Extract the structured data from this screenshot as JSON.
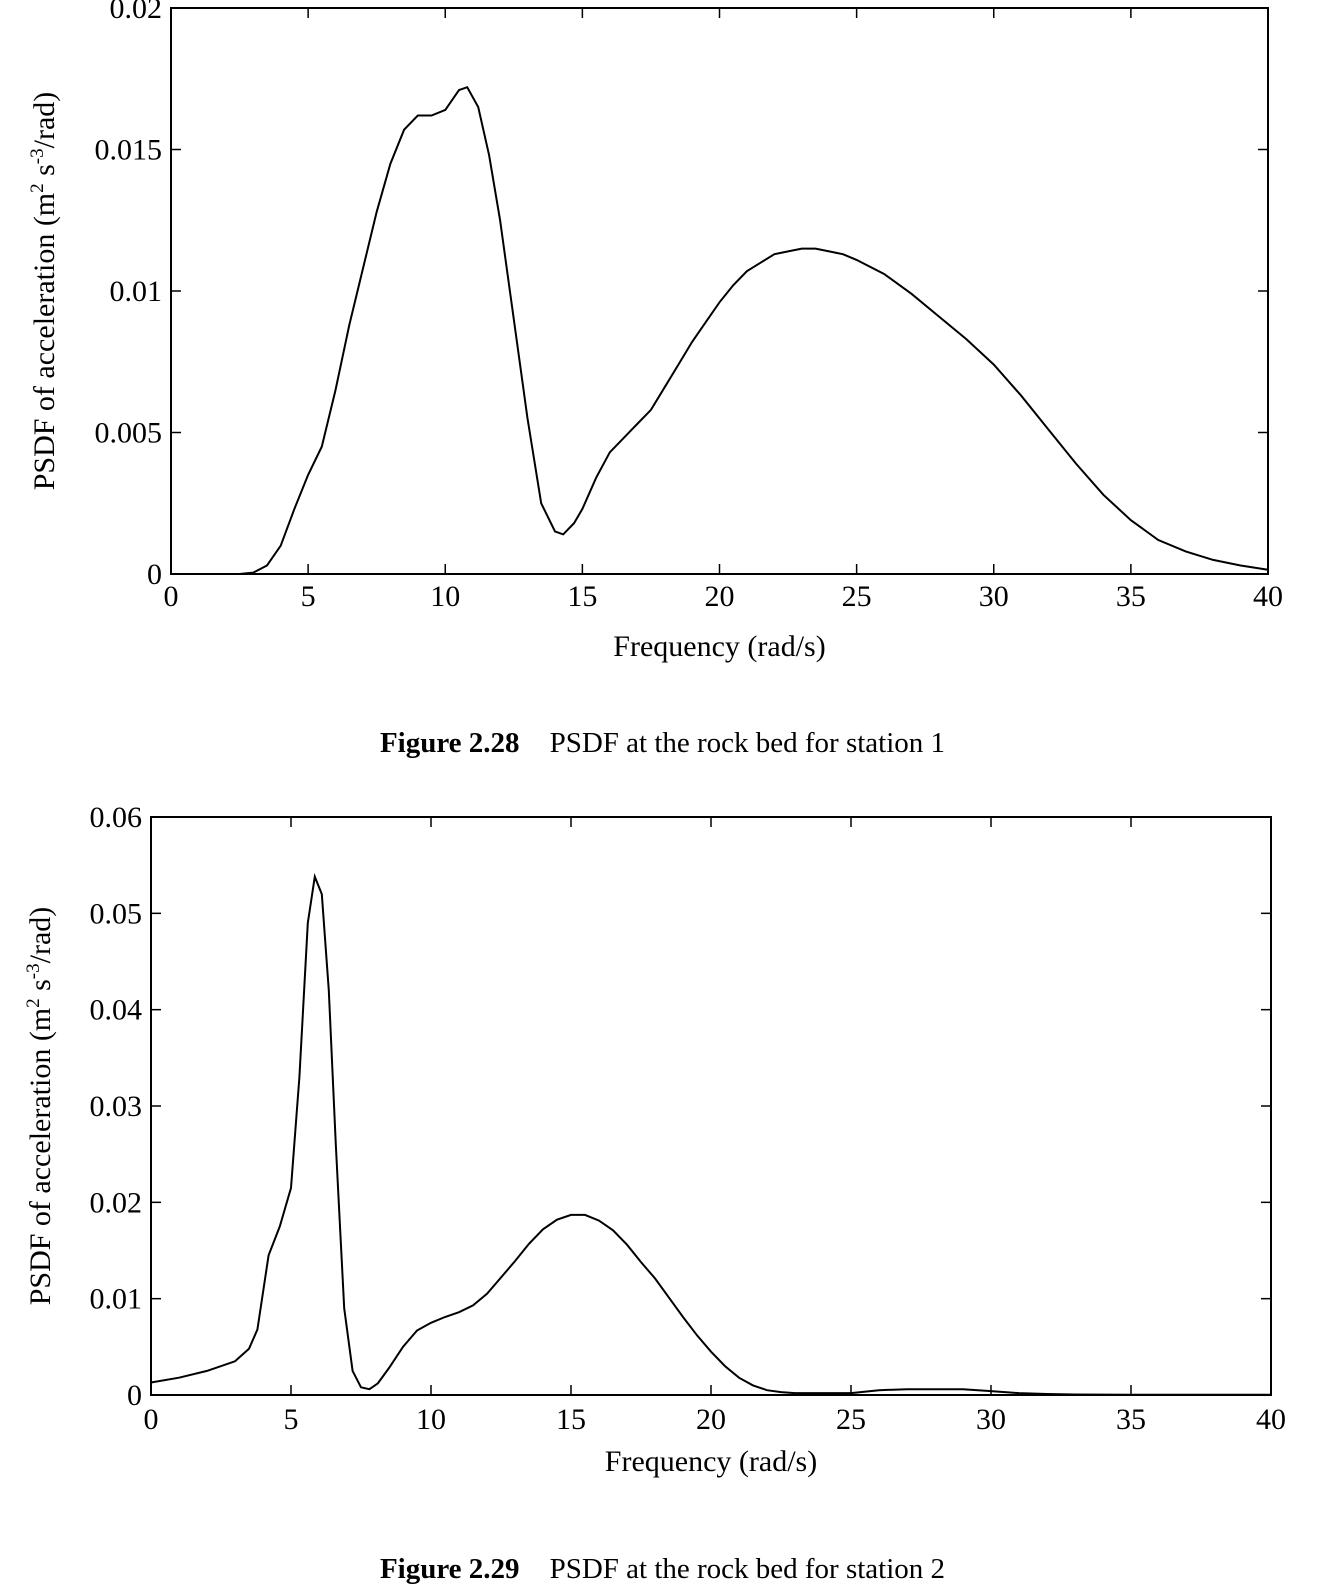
{
  "figures": [
    {
      "caption": {
        "number": "Figure 2.28",
        "text": "PSDF at the rock bed for station 1"
      }
    },
    {
      "caption": {
        "number": "Figure 2.29",
        "text": "PSDF at the rock bed for station 2"
      }
    }
  ],
  "chart_data": [
    {
      "type": "line",
      "title": "",
      "xlabel": "Frequency (rad/s)",
      "ylabel": "PSDF of acceleration (m² s⁻³/rad)",
      "ylabel_parts": [
        "PSDF of acceleration (m",
        "2",
        " s",
        "-3",
        "/rad)"
      ],
      "xlim": [
        0,
        40
      ],
      "ylim": [
        0,
        0.02
      ],
      "xticks": [
        0,
        5,
        10,
        15,
        20,
        25,
        30,
        35,
        40
      ],
      "xtick_labels": [
        "0",
        "5",
        "10",
        "15",
        "20",
        "25",
        "30",
        "35",
        "40"
      ],
      "yticks": [
        0,
        0.005,
        0.01,
        0.015,
        0.02
      ],
      "ytick_labels": [
        "0",
        "0.005",
        "0.01",
        "0.015",
        "0.02"
      ],
      "series": [
        {
          "name": "station 1",
          "x": [
            0,
            2.5,
            3.0,
            3.5,
            4.0,
            4.5,
            5.0,
            5.5,
            6.0,
            6.5,
            7.0,
            7.5,
            8.0,
            8.5,
            9.0,
            9.5,
            10.0,
            10.5,
            10.8,
            11.2,
            11.6,
            12.0,
            12.5,
            13.0,
            13.5,
            14.0,
            14.3,
            14.7,
            15.0,
            15.5,
            16.0,
            16.5,
            17.0,
            17.5,
            18.0,
            18.5,
            19.0,
            19.5,
            20.0,
            20.5,
            21.0,
            21.5,
            22.0,
            22.5,
            23.0,
            23.5,
            24.0,
            24.5,
            25.0,
            26.0,
            27.0,
            28.0,
            29.0,
            30.0,
            31.0,
            32.0,
            33.0,
            34.0,
            35.0,
            36.0,
            37.0,
            38.0,
            39.0,
            40.0
          ],
          "y": [
            0,
            0,
            5e-05,
            0.0003,
            0.001,
            0.0023,
            0.0035,
            0.0045,
            0.0065,
            0.0088,
            0.0108,
            0.0128,
            0.0145,
            0.0157,
            0.0162,
            0.0162,
            0.0164,
            0.0171,
            0.0172,
            0.0165,
            0.0148,
            0.0125,
            0.009,
            0.0055,
            0.0025,
            0.0015,
            0.0014,
            0.0018,
            0.0023,
            0.0034,
            0.0043,
            0.0048,
            0.0053,
            0.0058,
            0.0066,
            0.0074,
            0.0082,
            0.0089,
            0.0096,
            0.0102,
            0.0107,
            0.011,
            0.0113,
            0.0114,
            0.0115,
            0.0115,
            0.0114,
            0.0113,
            0.0111,
            0.0106,
            0.0099,
            0.0091,
            0.0083,
            0.0074,
            0.0063,
            0.0051,
            0.0039,
            0.0028,
            0.0019,
            0.0012,
            0.0008,
            0.0005,
            0.0003,
            0.00015
          ]
        }
      ]
    },
    {
      "type": "line",
      "title": "",
      "xlabel": "Frequency (rad/s)",
      "ylabel": "PSDF of acceleration (m² s⁻³/rad)",
      "ylabel_parts": [
        "PSDF of acceleration (m",
        "2",
        " s",
        "-3",
        "/rad)"
      ],
      "xlim": [
        0,
        40
      ],
      "ylim": [
        0,
        0.06
      ],
      "xticks": [
        0,
        5,
        10,
        15,
        20,
        25,
        30,
        35,
        40
      ],
      "xtick_labels": [
        "0",
        "5",
        "10",
        "15",
        "20",
        "25",
        "30",
        "35",
        "40"
      ],
      "yticks": [
        0,
        0.01,
        0.02,
        0.03,
        0.04,
        0.05,
        0.06
      ],
      "ytick_labels": [
        "0",
        "0.01",
        "0.02",
        "0.03",
        "0.04",
        "0.05",
        "0.06"
      ],
      "series": [
        {
          "name": "station 2",
          "x": [
            0,
            1.0,
            2.0,
            3.0,
            3.5,
            3.8,
            4.2,
            4.6,
            5.0,
            5.3,
            5.6,
            5.85,
            6.1,
            6.35,
            6.6,
            6.9,
            7.2,
            7.5,
            7.8,
            8.1,
            8.5,
            9.0,
            9.5,
            10.0,
            10.5,
            11.0,
            11.5,
            12.0,
            12.5,
            13.0,
            13.5,
            14.0,
            14.5,
            15.0,
            15.5,
            16.0,
            16.5,
            17.0,
            17.5,
            18.0,
            18.5,
            19.0,
            19.5,
            20.0,
            20.5,
            21.0,
            21.5,
            22.0,
            22.5,
            23.0,
            24.0,
            25.0,
            26.0,
            27.0,
            28.0,
            29.0,
            30.0,
            31.0,
            32.0,
            33.0,
            35.0,
            40.0
          ],
          "y": [
            0.0013,
            0.0018,
            0.0025,
            0.0035,
            0.0048,
            0.0068,
            0.0145,
            0.0175,
            0.0215,
            0.033,
            0.049,
            0.0538,
            0.052,
            0.042,
            0.026,
            0.009,
            0.0025,
            0.0008,
            0.0006,
            0.0012,
            0.0028,
            0.005,
            0.0067,
            0.0075,
            0.0081,
            0.0086,
            0.0093,
            0.0105,
            0.0122,
            0.0139,
            0.0157,
            0.0172,
            0.0182,
            0.0187,
            0.0187,
            0.0181,
            0.0171,
            0.0156,
            0.0138,
            0.0121,
            0.0101,
            0.0081,
            0.0062,
            0.0045,
            0.003,
            0.0018,
            0.001,
            0.0005,
            0.0003,
            0.0002,
            0.0002,
            0.0002,
            0.0005,
            0.0006,
            0.0006,
            0.0006,
            0.0004,
            0.0002,
            0.0001,
            5e-05,
            3e-05,
            3e-05
          ]
        }
      ]
    }
  ]
}
